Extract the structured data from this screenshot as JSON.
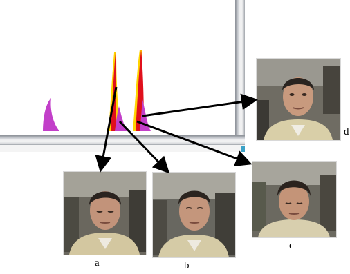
{
  "captions": {
    "a": "a",
    "b": "b",
    "c": "c",
    "d": "d"
  },
  "colors": {
    "magenta": "#c23fc9",
    "red": "#e0101c",
    "yellow": "#ffd400",
    "arrow": "#000000"
  }
}
